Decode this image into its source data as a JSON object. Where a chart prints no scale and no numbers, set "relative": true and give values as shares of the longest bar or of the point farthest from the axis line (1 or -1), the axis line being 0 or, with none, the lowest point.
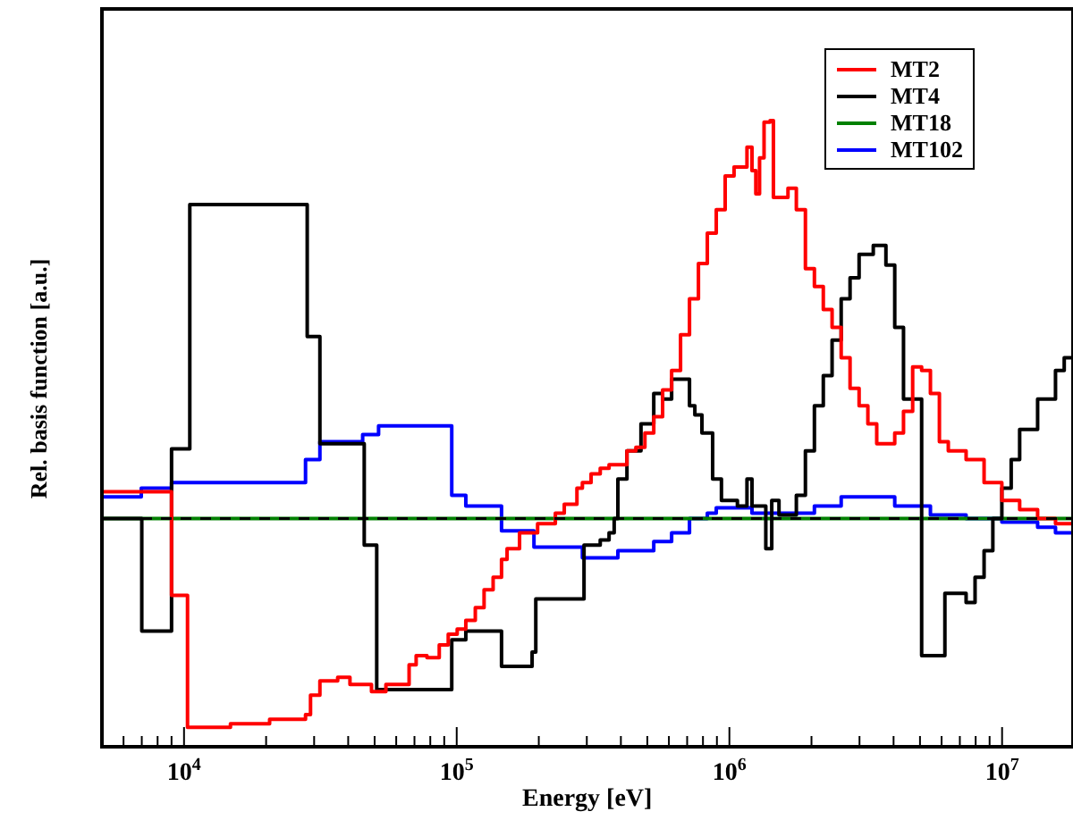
{
  "chart_data": {
    "type": "step",
    "relative": true,
    "log": "x",
    "xlabel": "Energy [eV]",
    "ylabel": "Rel. basis function [a.u.]",
    "legend": "top right",
    "grid": false,
    "xlim": [
      5000,
      18200000
    ],
    "xticks": [
      {
        "value": 5000,
        "label": null
      },
      {
        "value": 6000,
        "label": null
      },
      {
        "value": 7000,
        "label": null
      },
      {
        "value": 8000,
        "label": null
      },
      {
        "value": 9000,
        "label": null
      },
      {
        "value": 10000,
        "label": "10$^{4}$"
      },
      {
        "value": 20000,
        "label": null
      },
      {
        "value": 30000,
        "label": null
      },
      {
        "value": 40000,
        "label": null
      },
      {
        "value": 50000,
        "label": null
      },
      {
        "value": 60000,
        "label": null
      },
      {
        "value": 70000,
        "label": null
      },
      {
        "value": 80000,
        "label": null
      },
      {
        "value": 90000,
        "label": null
      },
      {
        "value": 100000,
        "label": "10$^{5}$"
      },
      {
        "value": 200000,
        "label": null
      },
      {
        "value": 300000,
        "label": null
      },
      {
        "value": 400000,
        "label": null
      },
      {
        "value": 500000,
        "label": null
      },
      {
        "value": 600000,
        "label": null
      },
      {
        "value": 700000,
        "label": null
      },
      {
        "value": 800000,
        "label": null
      },
      {
        "value": 900000,
        "label": null
      },
      {
        "value": 1000000,
        "label": "10$^{6}$"
      },
      {
        "value": 2000000,
        "label": null
      },
      {
        "value": 3000000,
        "label": null
      },
      {
        "value": 4000000,
        "label": null
      },
      {
        "value": 5000000,
        "label": null
      },
      {
        "value": 6000000,
        "label": null
      },
      {
        "value": 7000000,
        "label": null
      },
      {
        "value": 8000000,
        "label": null
      },
      {
        "value": 9000000,
        "label": null
      },
      {
        "value": 10000000,
        "label": "10$^{7}$"
      }
    ],
    "ref_lines": [
      {
        "axis": "y",
        "value": 0,
        "color": "#000000",
        "line_style": "dashed"
      }
    ],
    "series": [
      {
        "name": "MT2",
        "color": "#ff0000",
        "x": [
          5000,
          9000,
          10300,
          14800,
          20600,
          27900,
          29100,
          31500,
          36600,
          40600,
          48700,
          55000,
          66900,
          71000,
          77800,
          86300,
          93100,
          100400,
          108000,
          117000,
          126000,
          136000,
          146000,
          153000,
          170000,
          198000,
          230000,
          248000,
          276000,
          289000,
          311000,
          336000,
          362000,
          421000,
          454000,
          490000,
          528000,
          569000,
          614000,
          662000,
          714000,
          770000,
          830000,
          895000,
          965000,
          1040000,
          1160000,
          1210000,
          1250000,
          1290000,
          1340000,
          1410000,
          1450000,
          1640000,
          1760000,
          1900000,
          2050000,
          2210000,
          2380000,
          2570000,
          2770000,
          2990000,
          3220000,
          3470000,
          3750000,
          4040000,
          4350000,
          4700000,
          5070000,
          5460000,
          5890000,
          6350000,
          7380000,
          8590000,
          9980000,
          11600000,
          13500000,
          15700000,
          18200000
        ],
        "values": [
          0.067,
          -0.193,
          -0.525,
          -0.516,
          -0.505,
          -0.493,
          -0.444,
          -0.408,
          -0.399,
          -0.417,
          -0.435,
          -0.417,
          -0.368,
          -0.345,
          -0.35,
          -0.318,
          -0.291,
          -0.278,
          -0.256,
          -0.224,
          -0.179,
          -0.148,
          -0.103,
          -0.076,
          -0.036,
          -0.013,
          0.013,
          0.036,
          0.076,
          0.09,
          0.112,
          0.126,
          0.135,
          0.17,
          0.179,
          0.215,
          0.256,
          0.323,
          0.372,
          0.462,
          0.552,
          0.641,
          0.717,
          0.776,
          0.861,
          0.883,
          0.933,
          0.874,
          0.816,
          0.906,
          0.996,
          1.0,
          0.807,
          0.83,
          0.776,
          0.628,
          0.583,
          0.525,
          0.48,
          0.404,
          0.327,
          0.283,
          0.238,
          0.188,
          0.188,
          0.215,
          0.269,
          0.381,
          0.372,
          0.314,
          0.193,
          0.17,
          0.148,
          0.09,
          0.045,
          0.022,
          0,
          -0.013,
          -0.013
        ]
      },
      {
        "name": "MT4",
        "color": "#000000",
        "x": [
          5000,
          7000,
          9000,
          10500,
          28300,
          31500,
          45800,
          50900,
          95900,
          108000,
          146000,
          189000,
          195000,
          293000,
          336000,
          362000,
          378000,
          390000,
          421000,
          474000,
          528000,
          569000,
          614000,
          714000,
          747000,
          793000,
          868000,
          935000,
          1070000,
          1160000,
          1210000,
          1360000,
          1430000,
          1520000,
          1760000,
          1900000,
          2050000,
          2210000,
          2380000,
          2570000,
          2770000,
          2990000,
          3370000,
          3750000,
          4040000,
          4350000,
          5070000,
          6170000,
          7380000,
          7960000,
          8590000,
          9250000,
          9980000,
          10800000,
          11600000,
          13500000,
          15700000,
          16900000,
          18200000
        ],
        "values": [
          0,
          -0.283,
          0.175,
          0.789,
          0.457,
          0.188,
          -0.067,
          -0.43,
          -0.305,
          -0.283,
          -0.372,
          -0.336,
          -0.202,
          -0.067,
          -0.054,
          -0.036,
          0,
          0.099,
          0.17,
          0.238,
          0.314,
          0.3,
          0.35,
          0.283,
          0.26,
          0.215,
          0.099,
          0.045,
          0.031,
          0.099,
          0.031,
          -0.076,
          0.045,
          0.009,
          0.058,
          0.17,
          0.283,
          0.359,
          0.448,
          0.552,
          0.605,
          0.664,
          0.686,
          0.637,
          0.48,
          0.3,
          -0.345,
          -0.188,
          -0.211,
          -0.148,
          -0.081,
          0,
          0.076,
          0.148,
          0.224,
          0.3,
          0.372,
          0.404,
          0.404
        ]
      },
      {
        "name": "MT18",
        "color": "#008000",
        "x": [
          5000,
          18200000
        ],
        "values": [
          0,
          0
        ]
      },
      {
        "name": "MT102",
        "color": "#0000ff",
        "x": [
          5000,
          6970,
          9000,
          27900,
          31500,
          45200,
          51700,
          95900,
          108000,
          146000,
          192000,
          289000,
          390000,
          528000,
          614000,
          714000,
          830000,
          895000,
          1210000,
          1640000,
          2050000,
          2570000,
          3220000,
          4040000,
          5460000,
          7380000,
          9980000,
          13500000,
          15700000,
          18200000
        ],
        "values": [
          0.054,
          0.076,
          0.09,
          0.148,
          0.193,
          0.211,
          0.233,
          0.058,
          0.031,
          -0.031,
          -0.072,
          -0.099,
          -0.081,
          -0.058,
          -0.036,
          0,
          0.013,
          0.027,
          0.013,
          0.013,
          0.031,
          0.054,
          0.054,
          0.031,
          0.009,
          0,
          -0.009,
          -0.022,
          -0.036,
          -0.036
        ]
      }
    ]
  }
}
